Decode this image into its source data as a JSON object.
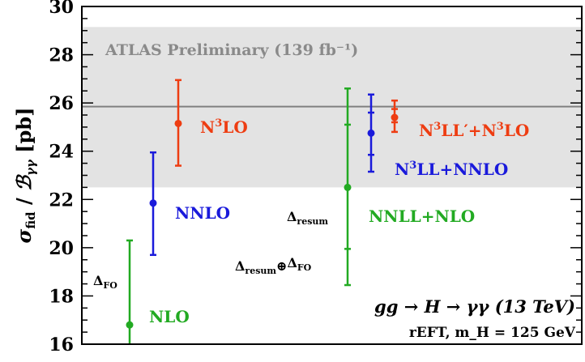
{
  "chart_data": {
    "type": "scatter",
    "title": "",
    "ylabel": "σ_fid / B_γγ [pb]",
    "ylim": [
      16,
      30
    ],
    "yticks": [
      16,
      18,
      20,
      22,
      24,
      26,
      28,
      30
    ],
    "measurement": {
      "label": "ATLAS Preliminary (139 fb⁻¹)",
      "central": 25.85,
      "band": [
        22.5,
        29.15
      ],
      "band_color": "#e3e3e3",
      "line_color": "#808080"
    },
    "series": [
      {
        "name": "NLO",
        "x": 1,
        "value": 16.8,
        "fo_err": [
          16.0,
          20.3
        ],
        "color": "#22aa22",
        "label_superscript": ""
      },
      {
        "name": "NNLO",
        "x": 2,
        "value": 21.85,
        "fo_err": [
          19.7,
          23.95
        ],
        "color": "#1a1adb",
        "label_superscript": ""
      },
      {
        "name": "N",
        "x": 3,
        "value": 25.15,
        "fo_err": [
          23.4,
          26.95
        ],
        "color": "#ee3d12",
        "label_superscript": "3",
        "label_suffix": "LO"
      },
      {
        "name": "NNLL+NLO",
        "x": 5,
        "value": 22.5,
        "resum_err": [
          19.95,
          25.1
        ],
        "total_err": [
          18.45,
          26.6
        ],
        "color": "#22aa22",
        "label_superscript": ""
      },
      {
        "name": "N",
        "x": 6,
        "value": 24.75,
        "resum_err": [
          23.85,
          25.6
        ],
        "total_err": [
          23.15,
          26.35
        ],
        "color": "#1a1adb",
        "label_superscript": "3",
        "label_suffix": "LL+NNLO"
      },
      {
        "name": "N",
        "x": 7,
        "value": 25.4,
        "resum_err": [
          25.2,
          25.75
        ],
        "total_err": [
          24.8,
          26.1
        ],
        "color": "#ee3d12",
        "label_superscript": "3",
        "label_suffix": "LL′+N",
        "label_superscript2": "3",
        "label_suffix2": "LO"
      }
    ],
    "annotations": {
      "delta_fo": "Δ_FO",
      "delta_resum": "Δ_resum",
      "delta_resum_fo": "Δ_resum⊕Δ_FO",
      "process": "gg → H → γγ (13 TeV)",
      "scheme": "rEFT, m_H = 125 GeV"
    }
  }
}
